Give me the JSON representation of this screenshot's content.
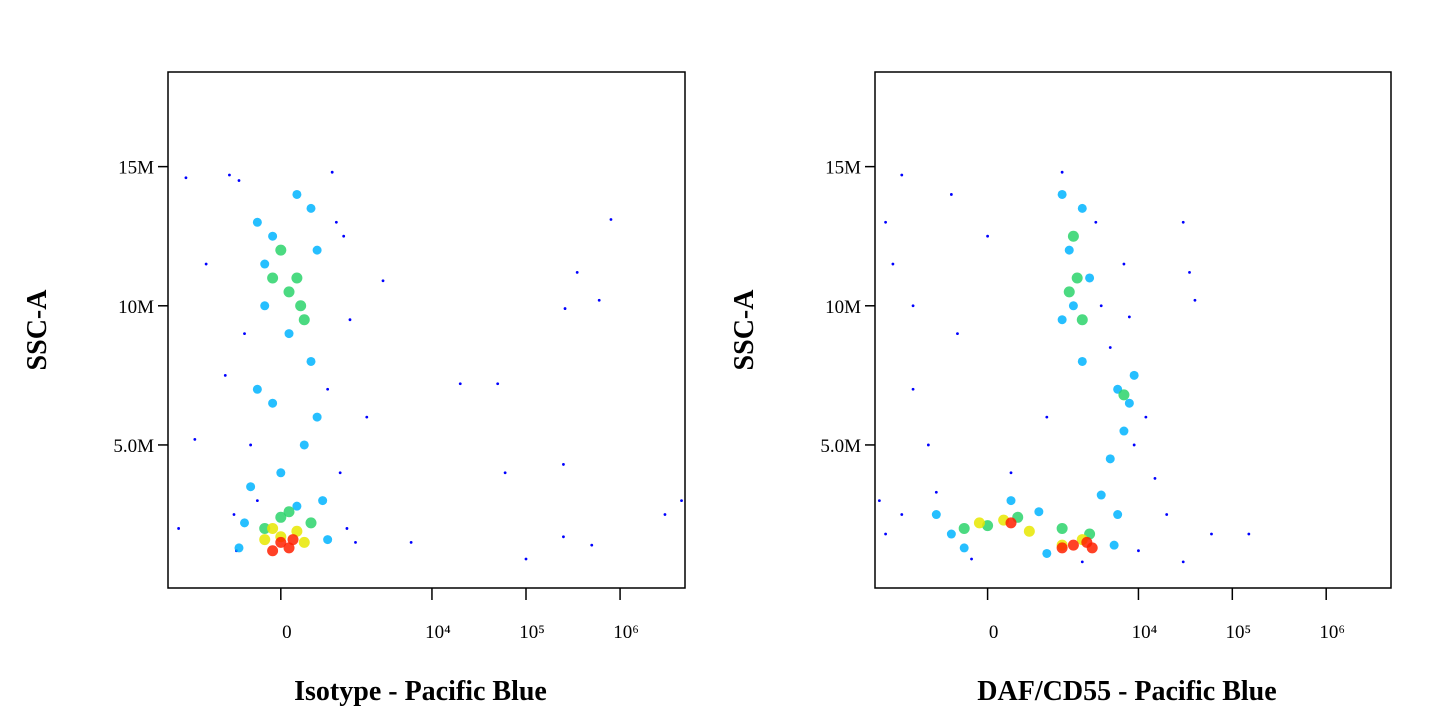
{
  "chart_data": [
    {
      "type": "scatter",
      "xlabel": "Isotype - Pacific Blue",
      "ylabel": "SSC-A",
      "x_scale": "arcsinh",
      "x_cofactor": 495,
      "xlim": [
        -3900,
        4900000
      ],
      "ylim": [
        -140000,
        18400000
      ],
      "xticks": [
        0,
        {
          "value": 10000,
          "label": "10⁴"
        },
        {
          "value": 100000,
          "label": "10⁵"
        },
        {
          "value": 1000000,
          "label": "10⁶"
        }
      ],
      "yticks": [
        {
          "value": 5000000,
          "label": "5.0M"
        },
        {
          "value": 10000000,
          "label": "10M"
        },
        {
          "value": 15000000,
          "label": "15M"
        }
      ],
      "series": [
        {
          "color": "#0000ff",
          "x": [
            -600,
            -300,
            -650,
            900,
            1100,
            -500,
            700,
            -400,
            1000,
            -700,
            1200,
            3000,
            20000,
            50000,
            60000,
            250000,
            260000,
            350000,
            600000,
            800000,
            3000000,
            4500000,
            100000,
            500000,
            -2500,
            -2000,
            -3000,
            1500,
            6000,
            250000,
            -1500,
            2000,
            -800,
            -900,
            1300,
            800
          ],
          "y": [
            14500000,
            3000000,
            1200000,
            13000000,
            12500000,
            9000000,
            7000000,
            5000000,
            4000000,
            2500000,
            2000000,
            10900000,
            7200000,
            7200000,
            4000000,
            4300000,
            9900000,
            11200000,
            10200000,
            13100000,
            2500000,
            3000000,
            900000,
            1400000,
            14600000,
            5200000,
            2000000,
            1500000,
            1500000,
            1700000,
            11500000,
            6000000,
            14700000,
            7500000,
            9500000,
            14800000
          ]
        },
        {
          "color": "#00b4ff",
          "x": [
            -300,
            200,
            500,
            -200,
            400,
            -100,
            300,
            0,
            -400,
            600,
            -200,
            100,
            -300,
            500,
            200,
            -500,
            700,
            -600,
            400,
            -100
          ],
          "y": [
            13000000,
            14000000,
            12000000,
            10000000,
            8000000,
            6500000,
            5000000,
            4000000,
            3500000,
            3000000,
            11500000,
            9000000,
            7000000,
            6000000,
            2800000,
            2200000,
            1600000,
            1300000,
            13500000,
            12500000
          ]
        },
        {
          "color": "#2bd36b",
          "x": [
            0,
            200,
            100,
            300,
            -100,
            250,
            0,
            -200,
            400,
            100
          ],
          "y": [
            12000000,
            11000000,
            10500000,
            9500000,
            11000000,
            10000000,
            2400000,
            2000000,
            2200000,
            2600000
          ]
        },
        {
          "color": "#e8e800",
          "x": [
            -100,
            200,
            0,
            -200,
            300
          ],
          "y": [
            2000000,
            1900000,
            1700000,
            1600000,
            1500000
          ]
        },
        {
          "color": "#ff2000",
          "x": [
            0,
            100,
            -100,
            150
          ],
          "y": [
            1500000,
            1300000,
            1200000,
            1600000
          ]
        }
      ]
    },
    {
      "type": "scatter",
      "xlabel": "DAF/CD55 - Pacific Blue",
      "ylabel": "SSC-A",
      "x_scale": "arcsinh",
      "x_cofactor": 495,
      "xlim": [
        -3900,
        4900000
      ],
      "ylim": [
        -140000,
        18400000
      ],
      "xticks": [
        0,
        {
          "value": 10000,
          "label": "10⁴"
        },
        {
          "value": 100000,
          "label": "10⁵"
        },
        {
          "value": 1000000,
          "label": "10⁶"
        }
      ],
      "yticks": [
        {
          "value": 5000000,
          "label": "5.0M"
        },
        {
          "value": 10000000,
          "label": "10M"
        },
        {
          "value": 15000000,
          "label": "15M"
        }
      ],
      "series": [
        {
          "color": "#0000ff",
          "x": [
            -3000,
            -2500,
            -2000,
            -1500,
            -3500,
            -3000,
            -1000,
            -1500,
            -500,
            0,
            -400,
            1500,
            3500,
            4000,
            5000,
            8000,
            9000,
            15000,
            30000,
            35000,
            40000,
            20000,
            60000,
            150000,
            30000,
            10000,
            -2000,
            300,
            1000,
            7000,
            -200,
            2500,
            12000,
            -800
          ],
          "y": [
            13000000,
            11500000,
            14700000,
            10000000,
            3000000,
            1800000,
            5000000,
            7000000,
            14000000,
            12500000,
            9000000,
            14800000,
            13000000,
            10000000,
            8500000,
            9600000,
            5000000,
            3800000,
            13000000,
            11200000,
            10200000,
            2500000,
            1800000,
            1800000,
            800000,
            1200000,
            2500000,
            4000000,
            6000000,
            11500000,
            900000,
            800000,
            6000000,
            3300000
          ]
        },
        {
          "color": "#00b4ff",
          "x": [
            1500,
            2500,
            1800,
            3000,
            1500,
            2500,
            6000,
            8000,
            7000,
            5000,
            -800,
            -500,
            300,
            800,
            4000,
            6000,
            5500,
            -300,
            1000,
            2000,
            9000
          ],
          "y": [
            14000000,
            13500000,
            12000000,
            11000000,
            9500000,
            8000000,
            7000000,
            6500000,
            5500000,
            4500000,
            2500000,
            1800000,
            3000000,
            2600000,
            3200000,
            2500000,
            1400000,
            1300000,
            1100000,
            10000000,
            7500000
          ]
        },
        {
          "color": "#2bd36b",
          "x": [
            2000,
            2200,
            1800,
            2500,
            7000,
            0,
            400,
            1500,
            3000,
            -300
          ],
          "y": [
            12500000,
            11000000,
            10500000,
            9500000,
            6800000,
            2100000,
            2400000,
            2000000,
            1800000,
            2000000
          ]
        },
        {
          "color": "#e8e800",
          "x": [
            200,
            600,
            2500,
            1500,
            -100
          ],
          "y": [
            2300000,
            1900000,
            1600000,
            1400000,
            2200000
          ]
        },
        {
          "color": "#ff2000",
          "x": [
            2000,
            2800,
            1500,
            3200,
            300
          ],
          "y": [
            1400000,
            1500000,
            1300000,
            1300000,
            2200000
          ]
        }
      ]
    }
  ]
}
